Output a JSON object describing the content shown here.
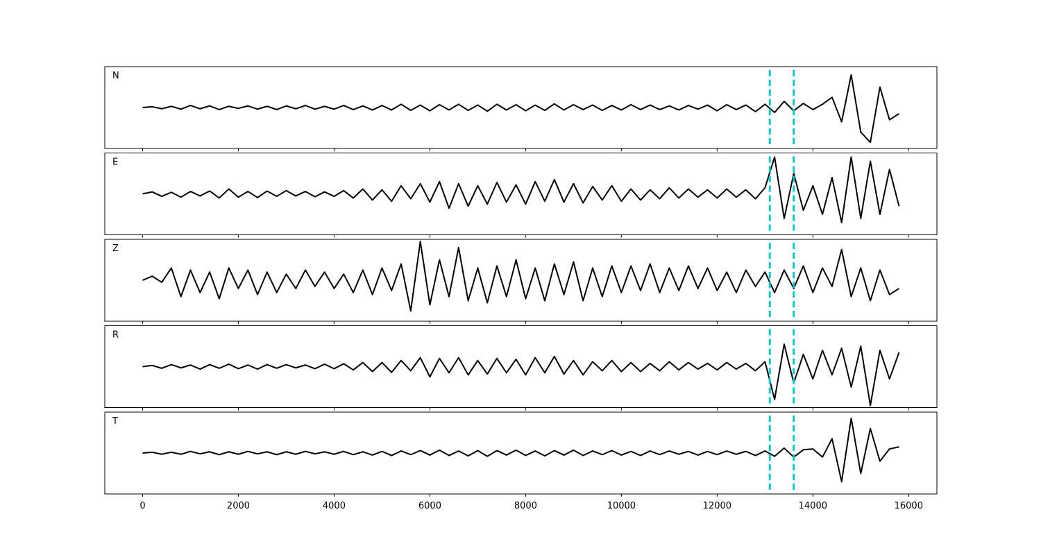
{
  "chart_data": {
    "type": "line",
    "x": [
      0,
      200,
      400,
      600,
      800,
      1000,
      1200,
      1400,
      1600,
      1800,
      2000,
      2200,
      2400,
      2600,
      2800,
      3000,
      3200,
      3400,
      3600,
      3800,
      4000,
      4200,
      4400,
      4600,
      4800,
      5000,
      5200,
      5400,
      5600,
      5800,
      6000,
      6200,
      6400,
      6600,
      6800,
      7000,
      7200,
      7400,
      7600,
      7800,
      8000,
      8200,
      8400,
      8600,
      8800,
      9000,
      9200,
      9400,
      9600,
      9800,
      10000,
      10200,
      10400,
      10600,
      10800,
      11000,
      11200,
      11400,
      11600,
      11800,
      12000,
      12200,
      12400,
      12600,
      12800,
      13000,
      13200,
      13400,
      13600,
      13800,
      14000,
      14200,
      14400,
      14600,
      14800,
      15000,
      15200,
      15400,
      15600,
      15800
    ],
    "xlim": [
      -790,
      16590
    ],
    "xticks": [
      0,
      2000,
      4000,
      6000,
      8000,
      10000,
      12000,
      14000,
      16000
    ],
    "ylim": [
      -1,
      1
    ],
    "line_color": "#000000",
    "vlines": [
      13100,
      13600
    ],
    "vline_color": "#17c3c3",
    "series": [
      {
        "name": "N",
        "values": [
          0,
          0.02,
          -0.03,
          0.03,
          -0.04,
          0.05,
          -0.03,
          0.04,
          -0.05,
          0.03,
          -0.02,
          0.04,
          -0.04,
          0.03,
          -0.05,
          0.04,
          -0.03,
          0.05,
          -0.04,
          0.03,
          -0.04,
          0.05,
          -0.05,
          0.04,
          -0.06,
          0.05,
          -0.06,
          0.08,
          -0.07,
          0.06,
          -0.08,
          0.07,
          -0.06,
          0.08,
          -0.07,
          0.06,
          -0.09,
          0.08,
          -0.06,
          0.07,
          -0.08,
          0.06,
          -0.07,
          0.09,
          -0.06,
          0.07,
          -0.05,
          0.06,
          -0.07,
          0.05,
          -0.06,
          0.07,
          -0.05,
          0.06,
          -0.05,
          0.04,
          -0.06,
          0.05,
          -0.04,
          0.06,
          -0.08,
          0.07,
          -0.05,
          0.06,
          -0.1,
          0.08,
          -0.12,
          0.15,
          -0.08,
          0.1,
          -0.05,
          0.08,
          0.25,
          -0.35,
          0.8,
          -0.6,
          -0.85,
          0.5,
          -0.3,
          -0.15
        ]
      },
      {
        "name": "E",
        "values": [
          0,
          0.05,
          -0.06,
          0.04,
          -0.08,
          0.06,
          -0.05,
          0.07,
          -0.1,
          0.12,
          -0.08,
          0.06,
          -0.09,
          0.07,
          -0.06,
          0.08,
          -0.05,
          0.06,
          -0.07,
          0.05,
          -0.06,
          0.08,
          -0.1,
          0.12,
          -0.15,
          0.1,
          -0.18,
          0.2,
          -0.12,
          0.25,
          -0.2,
          0.3,
          -0.35,
          0.25,
          -0.3,
          0.2,
          -0.25,
          0.28,
          -0.2,
          0.22,
          -0.25,
          0.3,
          -0.18,
          0.35,
          -0.2,
          0.25,
          -0.22,
          0.18,
          -0.15,
          0.2,
          -0.18,
          0.12,
          -0.15,
          0.1,
          -0.12,
          0.15,
          -0.1,
          0.12,
          -0.08,
          0.1,
          -0.1,
          0.12,
          -0.08,
          0.1,
          -0.12,
          0.15,
          0.9,
          -0.6,
          0.5,
          -0.4,
          0.2,
          -0.5,
          0.4,
          -0.7,
          0.9,
          -0.6,
          0.8,
          -0.5,
          0.6,
          -0.3
        ]
      },
      {
        "name": "Z",
        "values": [
          0,
          0.1,
          -0.05,
          0.3,
          -0.4,
          0.25,
          -0.3,
          0.2,
          -0.45,
          0.3,
          -0.2,
          0.25,
          -0.35,
          0.2,
          -0.3,
          0.15,
          -0.2,
          0.25,
          -0.15,
          0.2,
          -0.2,
          0.15,
          -0.3,
          0.25,
          -0.35,
          0.3,
          -0.25,
          0.4,
          -0.75,
          0.95,
          -0.6,
          0.5,
          -0.4,
          0.8,
          -0.5,
          0.3,
          -0.55,
          0.35,
          -0.4,
          0.5,
          -0.45,
          0.3,
          -0.5,
          0.4,
          -0.35,
          0.45,
          -0.5,
          0.3,
          -0.4,
          0.35,
          -0.3,
          0.35,
          -0.25,
          0.4,
          -0.3,
          0.3,
          -0.25,
          0.35,
          -0.2,
          0.3,
          -0.25,
          0.2,
          -0.3,
          0.25,
          -0.15,
          0.2,
          -0.3,
          0.25,
          -0.2,
          0.35,
          -0.3,
          0.3,
          -0.15,
          0.75,
          -0.4,
          0.3,
          -0.5,
          0.25,
          -0.35,
          -0.2
        ]
      },
      {
        "name": "R",
        "values": [
          0,
          0.03,
          -0.04,
          0.05,
          -0.03,
          0.04,
          -0.06,
          0.05,
          -0.04,
          0.06,
          -0.05,
          0.04,
          -0.06,
          0.05,
          -0.04,
          0.05,
          -0.03,
          0.04,
          -0.05,
          0.06,
          -0.05,
          0.07,
          -0.08,
          0.1,
          -0.12,
          0.1,
          -0.14,
          0.15,
          -0.1,
          0.22,
          -0.25,
          0.2,
          -0.15,
          0.22,
          -0.2,
          0.15,
          -0.18,
          0.2,
          -0.15,
          0.18,
          -0.2,
          0.22,
          -0.15,
          0.25,
          -0.18,
          0.15,
          -0.2,
          0.12,
          -0.1,
          0.15,
          -0.12,
          0.1,
          -0.12,
          0.08,
          -0.1,
          0.12,
          -0.08,
          0.1,
          -0.06,
          0.08,
          -0.08,
          0.1,
          -0.06,
          0.08,
          -0.1,
          0.12,
          -0.8,
          0.55,
          -0.4,
          0.3,
          -0.3,
          0.4,
          -0.2,
          0.45,
          -0.5,
          0.5,
          -0.95,
          0.4,
          -0.3,
          0.35
        ]
      },
      {
        "name": "T",
        "values": [
          0,
          0.02,
          -0.03,
          0.02,
          -0.03,
          0.04,
          -0.02,
          0.03,
          -0.04,
          0.03,
          -0.03,
          0.04,
          -0.02,
          0.03,
          -0.04,
          0.03,
          -0.03,
          0.04,
          -0.02,
          0.03,
          -0.03,
          0.04,
          -0.04,
          0.03,
          -0.05,
          0.04,
          -0.06,
          0.05,
          -0.04,
          0.06,
          -0.05,
          0.07,
          -0.06,
          0.05,
          -0.07,
          0.06,
          -0.08,
          0.06,
          -0.05,
          0.07,
          -0.06,
          0.05,
          -0.07,
          0.06,
          -0.05,
          0.07,
          -0.06,
          0.05,
          -0.04,
          0.06,
          -0.05,
          0.04,
          -0.06,
          0.05,
          -0.04,
          0.05,
          -0.03,
          0.04,
          -0.05,
          0.04,
          -0.04,
          0.05,
          -0.03,
          0.04,
          -0.06,
          0.05,
          -0.08,
          0.12,
          -0.1,
          0.08,
          0.1,
          -0.1,
          0.35,
          -0.7,
          0.85,
          -0.5,
          0.6,
          -0.2,
          0.1,
          0.15
        ]
      }
    ]
  }
}
